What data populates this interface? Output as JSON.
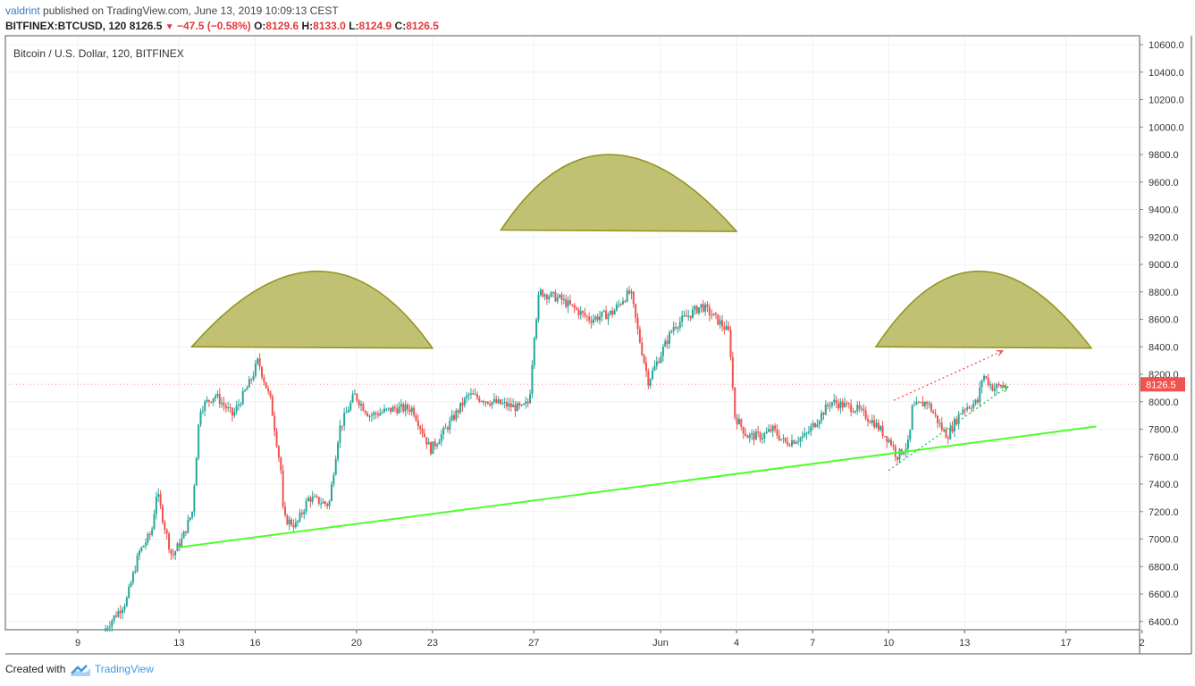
{
  "header": {
    "author": "valdrint",
    "published_text": " published on TradingView.com, June 13, 2019 10:09:13 CEST",
    "symbol": "BITFINEX:BTCUSD, 120",
    "price": "8126.5",
    "change": "−47.5 (−0.58%)",
    "o_label": "O:",
    "o_value": "8129.6",
    "h_label": "H:",
    "h_value": "8133.0",
    "l_label": "L:",
    "l_value": "8124.9",
    "c_label": "C:",
    "c_value": "8126.5"
  },
  "footer": {
    "created_with": "Created with",
    "brand": "TradingView"
  },
  "colors": {
    "up": "#26a69a",
    "down": "#ef5350",
    "trendline": "#4cff2a",
    "dome_fill": "#b5b65a",
    "dome_stroke": "#8f9418",
    "price_badge": "#ef5350"
  },
  "chart_data": {
    "type": "candlestick",
    "title": "Bitcoin / U.S. Dollar, 120, BITFINEX",
    "ylim": [
      6300,
      10700
    ],
    "y_ticks": [
      "10600.0",
      "10400.0",
      "10200.0",
      "10000.0",
      "9800.0",
      "9600.0",
      "9400.0",
      "9200.0",
      "9000.0",
      "8800.0",
      "8600.0",
      "8400.0",
      "8200.0",
      "8000.0",
      "7800.0",
      "7600.0",
      "7400.0",
      "7200.0",
      "7000.0",
      "6800.0",
      "6600.0",
      "6400.0"
    ],
    "x_ticks": [
      {
        "label": "9",
        "day": 0
      },
      {
        "label": "13",
        "day": 4
      },
      {
        "label": "16",
        "day": 7
      },
      {
        "label": "20",
        "day": 11
      },
      {
        "label": "23",
        "day": 14
      },
      {
        "label": "27",
        "day": 18
      },
      {
        "label": "Jun",
        "day": 23
      },
      {
        "label": "4",
        "day": 26
      },
      {
        "label": "7",
        "day": 29
      },
      {
        "label": "10",
        "day": 32
      },
      {
        "label": "13",
        "day": 35
      },
      {
        "label": "17",
        "day": 39
      },
      {
        "label": "2",
        "day": 42
      }
    ],
    "last_price_label": "8126.5",
    "last_price": 8126.5,
    "price_path": [
      [
        1.1,
        6330
      ],
      [
        2.0,
        6550
      ],
      [
        2.5,
        6900
      ],
      [
        3.0,
        7050
      ],
      [
        3.2,
        7350
      ],
      [
        3.5,
        7100
      ],
      [
        3.8,
        6870
      ],
      [
        4.2,
        7000
      ],
      [
        4.6,
        7200
      ],
      [
        4.9,
        7950
      ],
      [
        5.5,
        8050
      ],
      [
        6.2,
        7900
      ],
      [
        6.9,
        8150
      ],
      [
        7.2,
        8300
      ],
      [
        7.7,
        8000
      ],
      [
        8.1,
        7500
      ],
      [
        8.2,
        7150
      ],
      [
        8.7,
        7100
      ],
      [
        9.2,
        7300
      ],
      [
        10.0,
        7250
      ],
      [
        10.4,
        7800
      ],
      [
        11.0,
        8050
      ],
      [
        11.4,
        7950
      ],
      [
        11.6,
        7900
      ],
      [
        12.6,
        7950
      ],
      [
        13.3,
        7950
      ],
      [
        14.0,
        7650
      ],
      [
        14.6,
        7800
      ],
      [
        15.5,
        8050
      ],
      [
        16.4,
        8000
      ],
      [
        17.6,
        7950
      ],
      [
        17.9,
        8000
      ],
      [
        18.1,
        8500
      ],
      [
        18.3,
        8800
      ],
      [
        19.1,
        8750
      ],
      [
        20.3,
        8600
      ],
      [
        21.2,
        8650
      ],
      [
        21.6,
        8750
      ],
      [
        21.9,
        8800
      ],
      [
        22.2,
        8500
      ],
      [
        22.6,
        8150
      ],
      [
        23.1,
        8350
      ],
      [
        23.6,
        8550
      ],
      [
        24.7,
        8700
      ],
      [
        25.3,
        8600
      ],
      [
        25.8,
        8500
      ],
      [
        26.0,
        7900
      ],
      [
        26.5,
        7750
      ],
      [
        27.1,
        7750
      ],
      [
        27.5,
        7800
      ],
      [
        28.0,
        7700
      ],
      [
        28.8,
        7750
      ],
      [
        29.2,
        7850
      ],
      [
        29.8,
        8000
      ],
      [
        30.8,
        7950
      ],
      [
        31.5,
        7850
      ],
      [
        32.2,
        7700
      ],
      [
        32.4,
        7600
      ],
      [
        32.9,
        7700
      ],
      [
        33.0,
        7950
      ],
      [
        33.6,
        8000
      ],
      [
        34.2,
        7800
      ],
      [
        34.4,
        7750
      ],
      [
        35.0,
        7950
      ],
      [
        35.6,
        8000
      ],
      [
        35.8,
        8200
      ],
      [
        36.2,
        8100
      ],
      [
        36.6,
        8120
      ]
    ],
    "series": [
      {
        "type": "trendline",
        "color": "#4cff2a",
        "points": [
          [
            4.0,
            6940
          ],
          [
            40.2,
            7820
          ]
        ]
      },
      {
        "type": "arrow",
        "color": "#ef5350",
        "style": "dotted",
        "points": [
          [
            32.2,
            8010
          ],
          [
            36.5,
            8370
          ]
        ]
      },
      {
        "type": "arrow",
        "color": "#26c64f",
        "style": "dotted",
        "points": [
          [
            32.0,
            7500
          ],
          [
            36.7,
            8110
          ]
        ]
      },
      {
        "type": "dome",
        "points": [
          [
            4.5,
            8400
          ],
          [
            9.5,
            8950
          ],
          [
            14.0,
            8390
          ]
        ]
      },
      {
        "type": "dome",
        "points": [
          [
            16.7,
            9250
          ],
          [
            21.0,
            9800
          ],
          [
            26.0,
            9240
          ]
        ]
      },
      {
        "type": "dome",
        "points": [
          [
            31.5,
            8400
          ],
          [
            35.6,
            8950
          ],
          [
            40.0,
            8390
          ]
        ]
      }
    ]
  }
}
